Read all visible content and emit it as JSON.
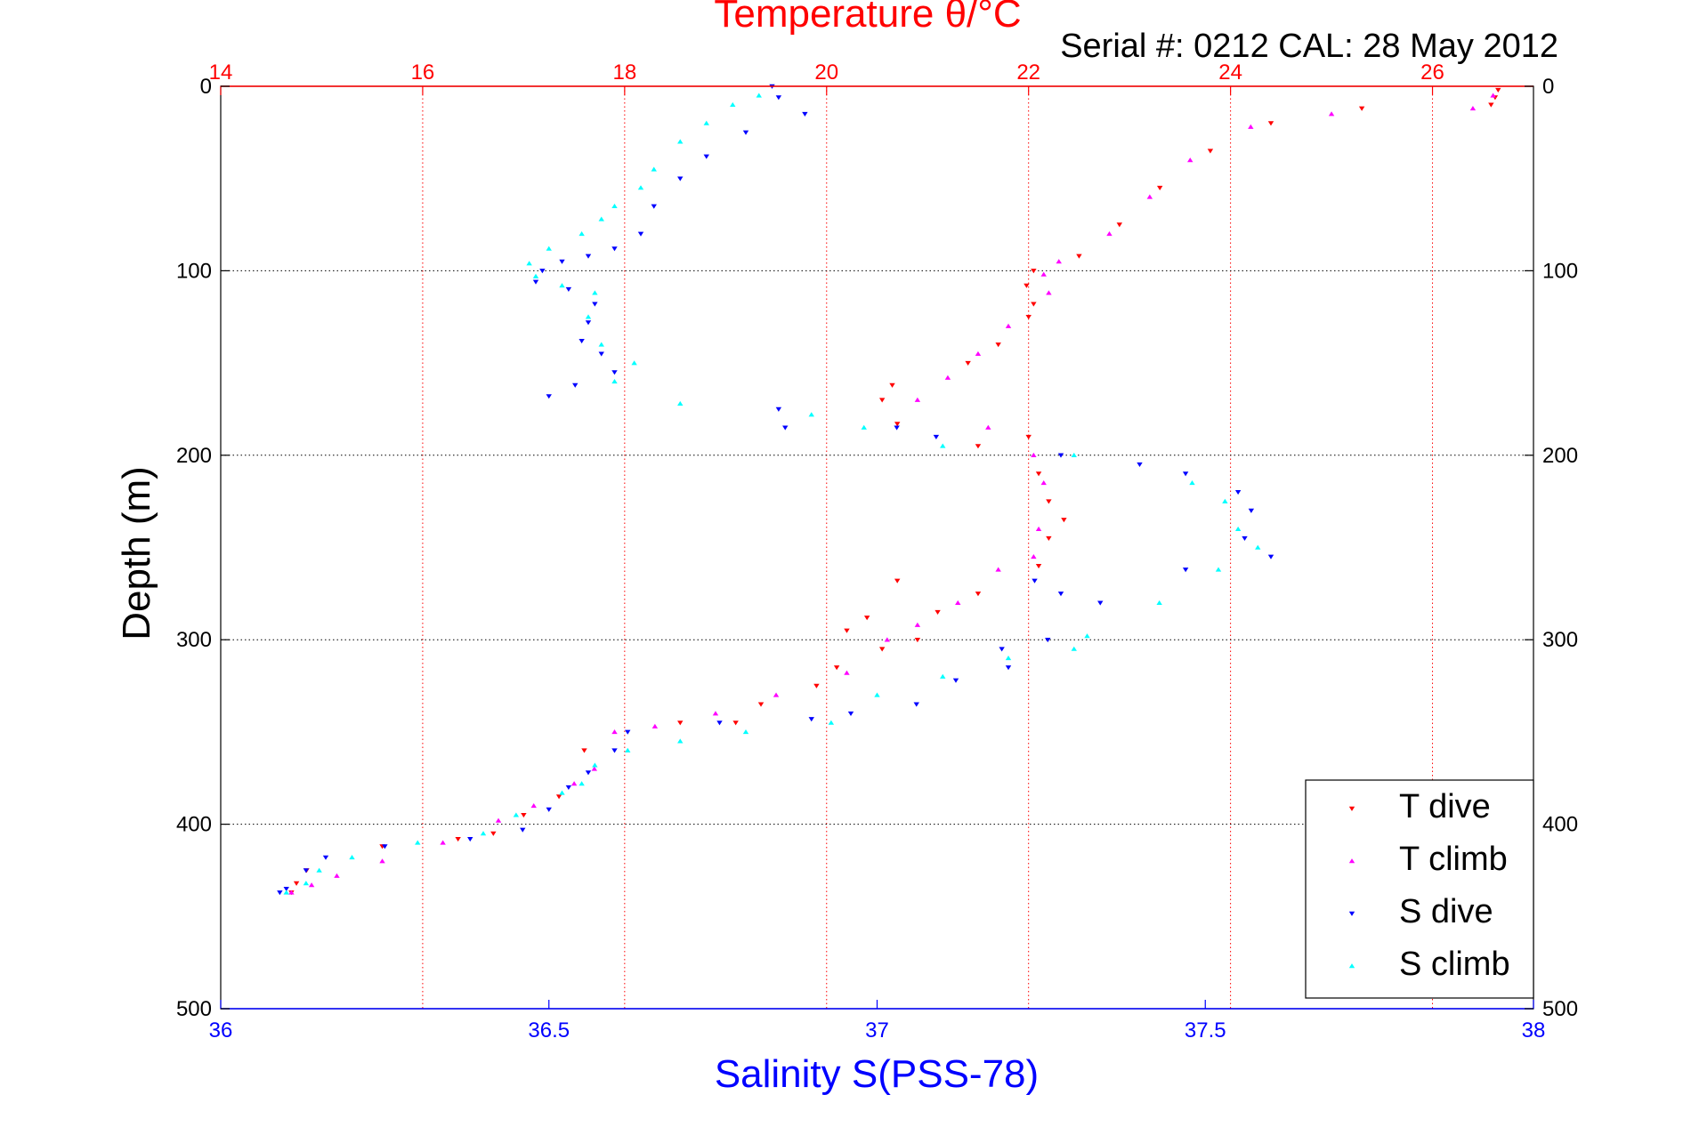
{
  "chart_data": {
    "type": "scatter",
    "title": "Temperature θ/°C",
    "subtitle": "Serial #: 0212  CAL: 28 May 2012",
    "ylabel": "Depth (m)",
    "xlabel": "Salinity S(PSS-78)",
    "temperature_axis": {
      "ticks": [
        "14",
        "16",
        "18",
        "20",
        "22",
        "24",
        "26"
      ],
      "range": [
        14,
        27
      ],
      "color": "#ff0000"
    },
    "salinity_axis": {
      "ticks": [
        "36",
        "36.5",
        "37",
        "37.5",
        "38"
      ],
      "range": [
        36,
        38
      ],
      "color": "#0000ff"
    },
    "depth_axis": {
      "ticks": [
        "0",
        "100",
        "200",
        "300",
        "400",
        "500"
      ],
      "range": [
        0,
        500
      ],
      "reversed": true
    },
    "grid": true,
    "legend_position": "bottom-right",
    "series": [
      {
        "name": "T dive",
        "axis": "temperature",
        "color": "#ff0000",
        "marker": "triangle-down",
        "points": [
          [
            26.65,
            2
          ],
          [
            26.62,
            6
          ],
          [
            26.58,
            10
          ],
          [
            25.3,
            12
          ],
          [
            24.4,
            20
          ],
          [
            23.8,
            35
          ],
          [
            23.3,
            55
          ],
          [
            22.9,
            75
          ],
          [
            22.5,
            92
          ],
          [
            22.05,
            100
          ],
          [
            21.98,
            108
          ],
          [
            22.05,
            118
          ],
          [
            22.0,
            125
          ],
          [
            21.7,
            140
          ],
          [
            21.4,
            150
          ],
          [
            20.65,
            162
          ],
          [
            20.55,
            170
          ],
          [
            20.7,
            183
          ],
          [
            21.5,
            195
          ],
          [
            22.0,
            190
          ],
          [
            22.1,
            210
          ],
          [
            22.2,
            225
          ],
          [
            22.35,
            235
          ],
          [
            22.2,
            245
          ],
          [
            22.1,
            260
          ],
          [
            21.5,
            275
          ],
          [
            20.7,
            268
          ],
          [
            21.1,
            285
          ],
          [
            20.4,
            288
          ],
          [
            20.2,
            295
          ],
          [
            20.9,
            300
          ],
          [
            20.55,
            305
          ],
          [
            20.1,
            315
          ],
          [
            19.9,
            325
          ],
          [
            19.35,
            335
          ],
          [
            19.1,
            345
          ],
          [
            18.55,
            345
          ],
          [
            17.6,
            360
          ],
          [
            17.35,
            385
          ],
          [
            17.0,
            395
          ],
          [
            16.7,
            405
          ],
          [
            16.35,
            408
          ],
          [
            15.6,
            412
          ],
          [
            14.85,
            425
          ],
          [
            14.75,
            432
          ],
          [
            14.7,
            437
          ]
        ]
      },
      {
        "name": "T climb",
        "axis": "temperature",
        "color": "#ff00ff",
        "marker": "triangle-up",
        "points": [
          [
            26.6,
            5
          ],
          [
            26.4,
            12
          ],
          [
            25.0,
            15
          ],
          [
            24.2,
            22
          ],
          [
            23.6,
            40
          ],
          [
            23.2,
            60
          ],
          [
            22.8,
            80
          ],
          [
            22.3,
            95
          ],
          [
            22.15,
            102
          ],
          [
            22.2,
            112
          ],
          [
            21.8,
            130
          ],
          [
            21.5,
            145
          ],
          [
            21.2,
            158
          ],
          [
            20.9,
            170
          ],
          [
            21.6,
            185
          ],
          [
            22.05,
            200
          ],
          [
            22.15,
            215
          ],
          [
            22.1,
            240
          ],
          [
            22.05,
            255
          ],
          [
            21.7,
            262
          ],
          [
            21.3,
            280
          ],
          [
            20.9,
            292
          ],
          [
            20.6,
            300
          ],
          [
            20.2,
            318
          ],
          [
            19.5,
            330
          ],
          [
            18.9,
            340
          ],
          [
            18.3,
            347
          ],
          [
            17.9,
            350
          ],
          [
            17.7,
            370
          ],
          [
            17.5,
            378
          ],
          [
            17.1,
            390
          ],
          [
            16.75,
            398
          ],
          [
            16.2,
            410
          ],
          [
            15.6,
            420
          ],
          [
            15.15,
            428
          ],
          [
            14.9,
            433
          ],
          [
            14.7,
            437
          ]
        ]
      },
      {
        "name": "S dive",
        "axis": "salinity",
        "color": "#0000ff",
        "marker": "triangle-down",
        "points": [
          [
            36.84,
            0
          ],
          [
            36.85,
            6
          ],
          [
            36.89,
            15
          ],
          [
            36.8,
            25
          ],
          [
            36.74,
            38
          ],
          [
            36.7,
            50
          ],
          [
            36.66,
            65
          ],
          [
            36.64,
            80
          ],
          [
            36.6,
            88
          ],
          [
            36.56,
            92
          ],
          [
            36.52,
            95
          ],
          [
            36.49,
            100
          ],
          [
            36.48,
            106
          ],
          [
            36.53,
            110
          ],
          [
            36.57,
            118
          ],
          [
            36.56,
            128
          ],
          [
            36.55,
            138
          ],
          [
            36.58,
            145
          ],
          [
            36.6,
            155
          ],
          [
            36.54,
            162
          ],
          [
            36.5,
            168
          ],
          [
            36.85,
            175
          ],
          [
            36.86,
            185
          ],
          [
            37.03,
            185
          ],
          [
            37.09,
            190
          ],
          [
            37.28,
            200
          ],
          [
            37.4,
            205
          ],
          [
            37.47,
            210
          ],
          [
            37.55,
            220
          ],
          [
            37.57,
            230
          ],
          [
            37.56,
            245
          ],
          [
            37.6,
            255
          ],
          [
            37.47,
            262
          ],
          [
            37.24,
            268
          ],
          [
            37.28,
            275
          ],
          [
            37.34,
            280
          ],
          [
            37.26,
            300
          ],
          [
            37.19,
            305
          ],
          [
            37.2,
            315
          ],
          [
            37.12,
            322
          ],
          [
            37.06,
            335
          ],
          [
            36.96,
            340
          ],
          [
            36.9,
            343
          ],
          [
            36.76,
            345
          ],
          [
            36.62,
            350
          ],
          [
            36.6,
            360
          ],
          [
            36.56,
            372
          ],
          [
            36.53,
            380
          ],
          [
            36.5,
            392
          ],
          [
            36.46,
            403
          ],
          [
            36.38,
            408
          ],
          [
            36.25,
            412
          ],
          [
            36.16,
            418
          ],
          [
            36.13,
            425
          ],
          [
            36.1,
            435
          ],
          [
            36.09,
            437
          ]
        ]
      },
      {
        "name": "S climb",
        "axis": "salinity",
        "color": "#00ffff",
        "marker": "triangle-up",
        "points": [
          [
            36.82,
            5
          ],
          [
            36.78,
            10
          ],
          [
            36.74,
            20
          ],
          [
            36.7,
            30
          ],
          [
            36.66,
            45
          ],
          [
            36.64,
            55
          ],
          [
            36.6,
            65
          ],
          [
            36.58,
            72
          ],
          [
            36.55,
            80
          ],
          [
            36.5,
            88
          ],
          [
            36.47,
            96
          ],
          [
            36.48,
            103
          ],
          [
            36.52,
            108
          ],
          [
            36.57,
            112
          ],
          [
            36.56,
            125
          ],
          [
            36.58,
            140
          ],
          [
            36.63,
            150
          ],
          [
            36.6,
            160
          ],
          [
            36.7,
            172
          ],
          [
            36.9,
            178
          ],
          [
            36.98,
            185
          ],
          [
            37.1,
            195
          ],
          [
            37.3,
            200
          ],
          [
            37.48,
            215
          ],
          [
            37.53,
            225
          ],
          [
            37.55,
            240
          ],
          [
            37.58,
            250
          ],
          [
            37.52,
            262
          ],
          [
            37.43,
            280
          ],
          [
            37.32,
            298
          ],
          [
            37.3,
            305
          ],
          [
            37.2,
            310
          ],
          [
            37.1,
            320
          ],
          [
            37.0,
            330
          ],
          [
            36.93,
            345
          ],
          [
            36.8,
            350
          ],
          [
            36.7,
            355
          ],
          [
            36.62,
            360
          ],
          [
            36.57,
            368
          ],
          [
            36.55,
            378
          ],
          [
            36.52,
            383
          ],
          [
            36.45,
            395
          ],
          [
            36.4,
            405
          ],
          [
            36.3,
            410
          ],
          [
            36.2,
            418
          ],
          [
            36.15,
            425
          ],
          [
            36.13,
            432
          ],
          [
            36.1,
            437
          ]
        ]
      }
    ]
  }
}
